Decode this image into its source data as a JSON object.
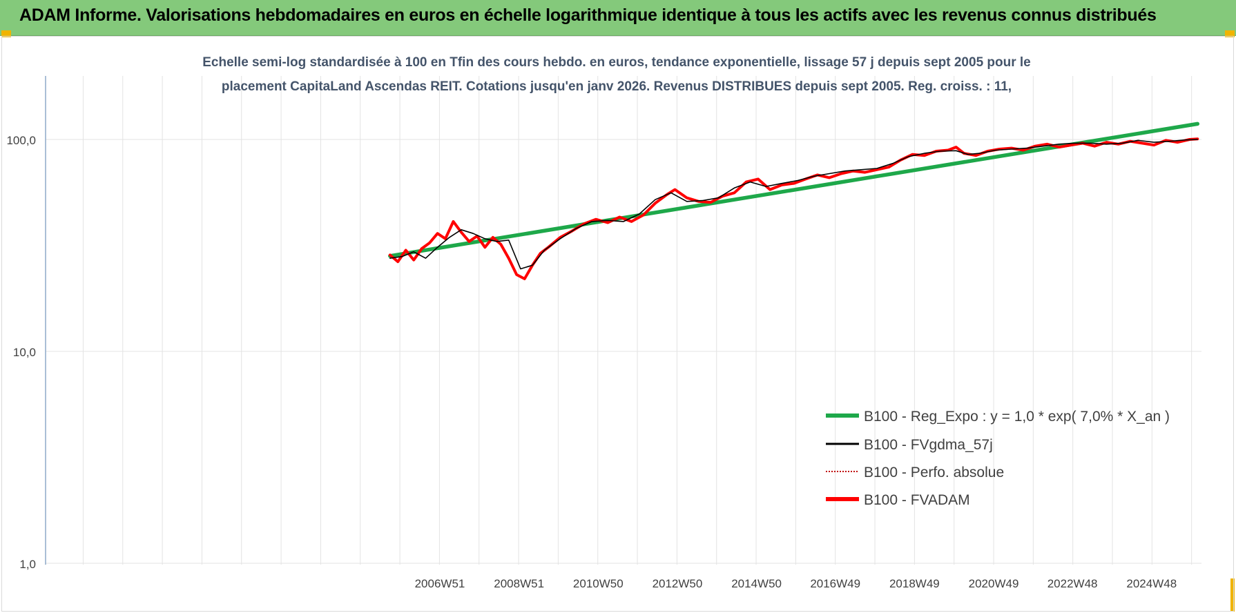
{
  "banner": {
    "title": "ADAM Informe. Valorisations hebdomadaires en euros en échelle logarithmique identique à tous les actifs avec les revenus connus distribués"
  },
  "colors": {
    "banner": "#84c97b",
    "trend": "#1ea84a",
    "fvgdma": "#000000",
    "perfo": "#c00000",
    "fvadam": "#ff0000",
    "grid": "#e3e3e3",
    "axis_text": "#404040",
    "corner": "#f0b400"
  },
  "chart_data": {
    "type": "line",
    "title_lines": [
      "Echelle semi-log standardisée à 100 en Tfin des cours hebdo. en euros, tendance exponentielle, lissage 57 j depuis sept 2005 pour le",
      "placement CapitaLand Ascendas REIT. Cotations jusqu'en janv 2026. Revenus DISTRIBUES depuis sept 2005. Reg. croiss. : 11,"
    ],
    "y_scale": "log",
    "ylim": [
      1,
      180
    ],
    "y_ticks": [
      1,
      10,
      100
    ],
    "y_tick_labels": [
      "1,0",
      "10,0",
      "100,0"
    ],
    "x_tick_labels": [
      "2006W51",
      "2008W51",
      "2010W50",
      "2012W50",
      "2014W50",
      "2016W49",
      "2018W49",
      "2020W49",
      "2022W48",
      "2024W48"
    ],
    "x_tick_years": [
      2006.96,
      2008.96,
      2010.96,
      2012.96,
      2014.96,
      2016.95,
      2018.95,
      2020.95,
      2022.94,
      2024.94
    ],
    "xlim": [
      1997.0,
      2026.2
    ],
    "grid": true,
    "legend_position": "bottom-right",
    "series": [
      {
        "name": "B100 - Reg_Expo : y = 1,0 * exp( 7,0% *  X_an )",
        "style": "trend",
        "x": [
          2005.7,
          2026.1
        ],
        "y": [
          28.2,
          118.5
        ]
      },
      {
        "name": "B100 - FVgdma_57j",
        "style": "smooth",
        "x": [
          2005.7,
          2006.0,
          2006.3,
          2006.6,
          2006.9,
          2007.2,
          2007.5,
          2007.8,
          2008.1,
          2008.4,
          2008.7,
          2009.0,
          2009.3,
          2009.6,
          2010.0,
          2010.4,
          2010.8,
          2011.2,
          2011.6,
          2012.0,
          2012.4,
          2012.8,
          2013.2,
          2013.6,
          2014.0,
          2014.4,
          2014.8,
          2015.2,
          2015.6,
          2016.0,
          2016.4,
          2016.8,
          2017.2,
          2017.6,
          2018.0,
          2018.4,
          2018.8,
          2019.2,
          2019.6,
          2020.0,
          2020.3,
          2020.6,
          2021.0,
          2021.4,
          2021.8,
          2022.2,
          2022.6,
          2023.0,
          2023.4,
          2023.8,
          2024.2,
          2024.6,
          2025.0,
          2025.4,
          2025.8,
          2026.1
        ],
        "y": [
          27.5,
          28.0,
          29.5,
          27.5,
          31.0,
          34.5,
          37.5,
          36.0,
          34.0,
          33.0,
          33.5,
          24.5,
          25.5,
          30.0,
          34.0,
          38.0,
          41.0,
          41.5,
          41.0,
          44.5,
          52.0,
          56.0,
          51.0,
          51.5,
          53.0,
          59.0,
          63.0,
          60.0,
          62.0,
          64.0,
          67.0,
          69.0,
          71.0,
          72.0,
          73.0,
          77.0,
          83.0,
          86.0,
          88.0,
          88.5,
          85.0,
          86.0,
          89.0,
          90.0,
          91.0,
          93.0,
          95.0,
          96.0,
          96.0,
          95.0,
          96.0,
          99.0,
          97.0,
          98.0,
          99.5,
          100.0
        ]
      },
      {
        "name": "B100 - Perfo. absolue",
        "style": "dotted",
        "x": [],
        "y": []
      },
      {
        "name": "B100 - FVADAM",
        "style": "thick",
        "x": [
          2005.7,
          2005.9,
          2006.1,
          2006.3,
          2006.5,
          2006.7,
          2006.9,
          2007.1,
          2007.3,
          2007.5,
          2007.7,
          2007.9,
          2008.1,
          2008.3,
          2008.5,
          2008.7,
          2008.9,
          2009.1,
          2009.3,
          2009.5,
          2009.7,
          2010.0,
          2010.3,
          2010.6,
          2010.9,
          2011.2,
          2011.5,
          2011.8,
          2012.1,
          2012.4,
          2012.7,
          2012.9,
          2013.2,
          2013.5,
          2013.8,
          2014.1,
          2014.4,
          2014.7,
          2015.0,
          2015.3,
          2015.6,
          2015.9,
          2016.2,
          2016.5,
          2016.8,
          2017.1,
          2017.4,
          2017.7,
          2018.0,
          2018.3,
          2018.6,
          2018.9,
          2019.2,
          2019.5,
          2019.8,
          2020.0,
          2020.2,
          2020.5,
          2020.8,
          2021.1,
          2021.4,
          2021.7,
          2022.0,
          2022.3,
          2022.6,
          2022.9,
          2023.2,
          2023.5,
          2023.8,
          2024.1,
          2024.4,
          2024.7,
          2025.0,
          2025.3,
          2025.6,
          2025.9,
          2026.1
        ],
        "y": [
          28.5,
          26.5,
          30.0,
          27.0,
          30.5,
          32.5,
          36.0,
          34.0,
          41.0,
          36.5,
          33.0,
          35.0,
          31.0,
          34.5,
          32.0,
          27.5,
          23.0,
          22.0,
          25.5,
          29.0,
          31.0,
          34.5,
          37.0,
          40.0,
          42.0,
          40.5,
          43.0,
          41.0,
          44.0,
          50.0,
          55.0,
          58.0,
          53.0,
          51.0,
          50.5,
          54.0,
          56.0,
          63.0,
          65.0,
          58.0,
          61.0,
          62.0,
          65.0,
          68.0,
          66.0,
          69.0,
          71.0,
          70.0,
          72.0,
          74.0,
          80.0,
          85.0,
          84.0,
          88.0,
          89.0,
          92.0,
          86.0,
          84.0,
          88.0,
          90.0,
          91.0,
          89.0,
          93.0,
          95.0,
          92.0,
          94.0,
          96.0,
          93.0,
          97.0,
          95.0,
          98.0,
          96.0,
          94.0,
          99.0,
          97.0,
          100.0,
          100.5
        ]
      }
    ]
  }
}
